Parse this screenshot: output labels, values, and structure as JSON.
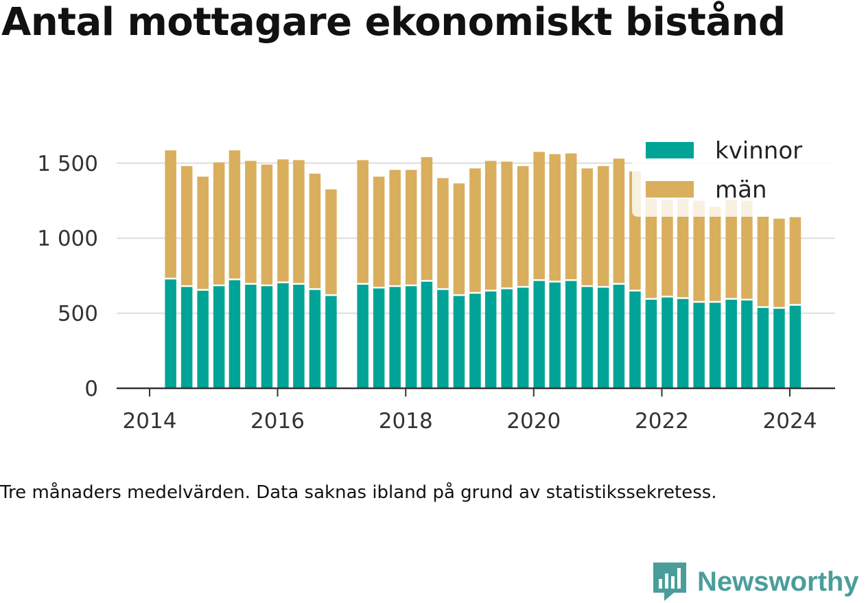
{
  "title": "Antal mottagare ekonomiskt bistånd",
  "caption": "Tre månaders medelvärden. Data saknas ibland på grund av statistikssekretess.",
  "brand": "Newsworthy",
  "colors": {
    "kvinnor": "#00a496",
    "man": "#d9ae5c",
    "grid": "#dddddd",
    "axis": "#333333"
  },
  "chart_data": {
    "type": "bar",
    "stacked": true,
    "x_ticks": [
      "2014",
      "2016",
      "2018",
      "2020",
      "2022",
      "2024"
    ],
    "y_ticks": [
      "0",
      "500",
      "1 000",
      "1 500"
    ],
    "ylim": [
      0,
      1750
    ],
    "legend": {
      "placement": "top-right",
      "entries": [
        "kvinnor",
        "män"
      ]
    },
    "grid": true,
    "x": [
      "2014-05",
      "2014-08",
      "2014-11",
      "2015-02",
      "2015-05",
      "2015-08",
      "2015-11",
      "2016-02",
      "2016-05",
      "2016-08",
      "2016-11",
      "2017-05",
      "2017-08",
      "2017-11",
      "2018-02",
      "2018-05",
      "2018-08",
      "2018-11",
      "2019-02",
      "2019-05",
      "2019-08",
      "2019-11",
      "2020-02",
      "2020-05",
      "2020-08",
      "2020-11",
      "2021-02",
      "2021-05",
      "2021-08",
      "2021-11",
      "2022-02",
      "2022-05",
      "2022-08",
      "2022-11",
      "2023-02",
      "2023-05",
      "2023-08",
      "2023-11",
      "2024-02"
    ],
    "series": [
      {
        "name": "kvinnor",
        "values": [
          725,
          675,
          650,
          680,
          720,
          690,
          680,
          700,
          690,
          655,
          615,
          690,
          665,
          675,
          680,
          710,
          655,
          615,
          630,
          645,
          660,
          670,
          715,
          705,
          715,
          675,
          670,
          690,
          645,
          590,
          605,
          595,
          570,
          570,
          590,
          585,
          535,
          530,
          550
        ]
      },
      {
        "name": "män",
        "values": [
          860,
          805,
          760,
          825,
          865,
          825,
          810,
          825,
          830,
          775,
          710,
          830,
          745,
          780,
          775,
          830,
          745,
          750,
          835,
          870,
          850,
          810,
          860,
          855,
          850,
          790,
          810,
          840,
          800,
          670,
          650,
          665,
          680,
          640,
          665,
          665,
          610,
          600,
          590
        ]
      }
    ]
  }
}
